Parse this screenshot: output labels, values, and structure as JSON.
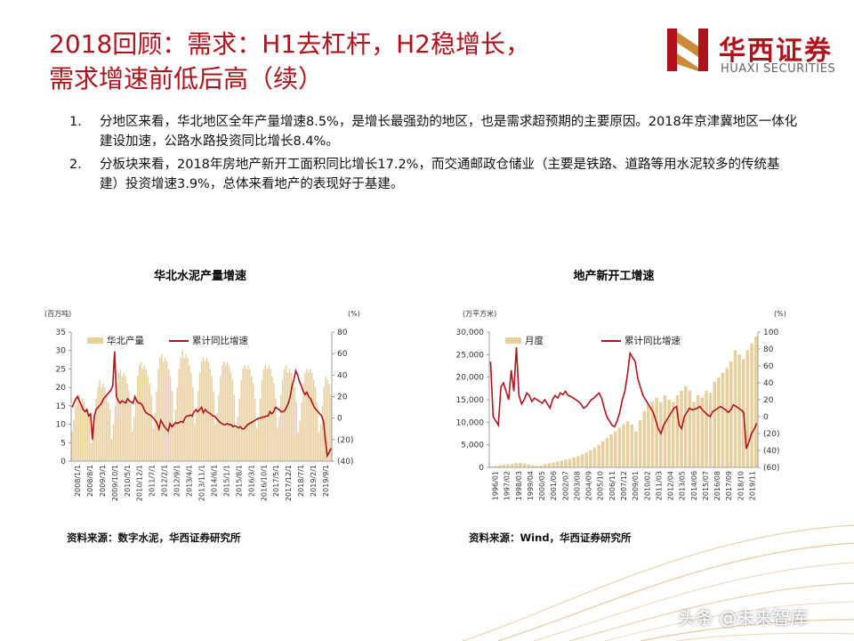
{
  "header": {
    "title_line1": "2018回顾：需求：H1去杠杆，H2稳增长，",
    "title_line2": "需求增速前低后高（续）"
  },
  "logo": {
    "cn": "华西证券",
    "en": "HUAXI SECURITIES"
  },
  "points": [
    {
      "num": "1.",
      "text": "分地区来看，华北地区全年产量增速8.5%，是增长最强劲的地区，也是需求超预期的主要原因。2018年京津冀地区一体化建设加速，公路水路投资同比增长8.4%。"
    },
    {
      "num": "2.",
      "text": "分板块来看，2018年房地产新开工面积同比增长17.2%，而交通邮政仓储业（主要是铁路、道路等用水泥较多的传统基建）投资增速3.9%，总体来看地产的表现好于基建。"
    }
  ],
  "chart1": {
    "title": "华北水泥产量增速",
    "source": "资料来源：数字水泥，华西证券研究所"
  },
  "chart2": {
    "title": "地产新开工增速",
    "source": "资料来源：Wind，华西证券研究所"
  },
  "watermark": "头条 @未来智库",
  "colors": {
    "accent": "#b0121b",
    "bar": "#e8cf9e",
    "line": "#b3121c"
  },
  "chart_data": [
    {
      "type": "bar",
      "title": "华北水泥产量增速",
      "left_unit": "(百万吨)",
      "right_unit": "(%)",
      "left_ylim": [
        0,
        35
      ],
      "left_ticks": [
        "0",
        "5",
        "10",
        "15",
        "20",
        "25",
        "30",
        "35"
      ],
      "right_ylim": [
        -40,
        80
      ],
      "right_ticks": [
        "(40)",
        "(20)",
        "0",
        "20",
        "40",
        "60",
        "80"
      ],
      "x_ticks": [
        "2008/1/1",
        "2008/8/1",
        "2009/3/1",
        "2009/10/1",
        "2010/5/1",
        "2010/12/1",
        "2011/7/1",
        "2012/2/1",
        "2012/9/1",
        "2013/4/1",
        "2013/11/1",
        "2014/6/1",
        "2015/1/1",
        "2015/8/1",
        "2016/3/1",
        "2016/10/1",
        "2017/5/1",
        "2017/12/1",
        "2018/7/1",
        "2019/2/1",
        "2019/9/1"
      ],
      "series": [
        {
          "name": "华北产量",
          "kind": "bar",
          "axis": "left",
          "values": [
            8,
            11,
            15,
            18,
            18,
            16,
            17,
            16,
            14,
            14,
            12,
            5,
            9,
            13,
            17,
            20,
            22,
            20,
            21,
            20,
            18,
            16,
            14,
            6,
            10,
            15,
            21,
            24,
            25,
            23,
            24,
            23,
            21,
            19,
            16,
            8,
            12,
            17,
            23,
            26,
            27,
            25,
            26,
            25,
            23,
            21,
            18,
            9,
            13,
            19,
            25,
            28,
            29,
            27,
            28,
            27,
            25,
            23,
            19,
            10,
            14,
            20,
            25,
            28,
            30,
            28,
            29,
            28,
            26,
            24,
            20,
            10,
            14,
            19,
            24,
            27,
            28,
            27,
            28,
            27,
            25,
            23,
            19,
            10,
            13,
            18,
            23,
            26,
            27,
            26,
            27,
            26,
            24,
            22,
            18,
            9,
            12,
            17,
            22,
            25,
            26,
            25,
            26,
            25,
            23,
            21,
            17,
            9,
            12,
            17,
            22,
            25,
            26,
            25,
            26,
            25,
            23,
            21,
            17,
            9,
            12,
            18,
            22,
            25,
            26,
            24,
            25,
            24,
            22,
            20,
            16,
            8,
            11,
            16,
            21,
            24,
            25,
            24,
            25,
            24,
            22,
            20,
            16,
            8,
            10,
            15,
            20,
            23,
            22,
            21,
            18
          ]
        },
        {
          "name": "累计同比增速",
          "kind": "line",
          "axis": "right",
          "values": [
            10,
            14,
            18,
            20,
            16,
            12,
            8,
            6,
            8,
            2,
            4,
            -20,
            2,
            8,
            10,
            12,
            14,
            18,
            20,
            22,
            24,
            26,
            30,
            62,
            20,
            16,
            14,
            16,
            15,
            14,
            18,
            16,
            15,
            14,
            20,
            16,
            14,
            14,
            12,
            8,
            5,
            4,
            3,
            2,
            0,
            -2,
            -5,
            -10,
            -2,
            -5,
            -8,
            -10,
            -12,
            -5,
            -8,
            -6,
            -4,
            -5,
            -4,
            -3,
            -4,
            0,
            2,
            2,
            3,
            2,
            6,
            8,
            6,
            8,
            10,
            5,
            8,
            6,
            5,
            4,
            2,
            2,
            0,
            -2,
            -4,
            -5,
            -6,
            -6,
            -5,
            -6,
            -6,
            -8,
            -7,
            -8,
            -9,
            -8,
            -10,
            -10,
            -8,
            -6,
            -5,
            -4,
            -3,
            -2,
            -1,
            0,
            0,
            1,
            1,
            2,
            2,
            6,
            4,
            6,
            10,
            9,
            8,
            6,
            6,
            7,
            10,
            14,
            20,
            30,
            36,
            44,
            40,
            34,
            30,
            25,
            22,
            24,
            20,
            18,
            14,
            10,
            8,
            6,
            4,
            2,
            -3,
            -20,
            -35,
            -32,
            -28
          ]
        }
      ]
    },
    {
      "type": "bar",
      "title": "地产新开工增速",
      "left_unit": "(万平方米)",
      "right_unit": "(%)",
      "left_ylim": [
        0,
        30000
      ],
      "left_ticks": [
        "0",
        "5,000",
        "10,000",
        "15,000",
        "20,000",
        "25,000",
        "30,000"
      ],
      "right_ylim": [
        -60,
        100
      ],
      "right_ticks": [
        "(60)",
        "(40)",
        "(20)",
        "0",
        "20",
        "40",
        "60",
        "80",
        "100"
      ],
      "x_ticks": [
        "1996/01",
        "1997/02",
        "1998/03",
        "1999/04",
        "2000/05",
        "2001/06",
        "2002/07",
        "2003/08",
        "2004/09",
        "2005/10",
        "2006/11",
        "2007/12",
        "2009/01",
        "2010/02",
        "2011/03",
        "2012/04",
        "2013/05",
        "2014/06",
        "2015/07",
        "2016/08",
        "2017/09",
        "2018/10",
        "2019/11"
      ],
      "series": [
        {
          "name": "月度",
          "kind": "bar",
          "axis": "left",
          "values": [
            200,
            300,
            500,
            600,
            700,
            800,
            900,
            1000,
            900,
            700,
            500,
            300,
            400,
            700,
            900,
            1100,
            1300,
            1500,
            1700,
            1900,
            2200,
            2500,
            2900,
            3300,
            3800,
            4400,
            5000,
            5800,
            6500,
            7300,
            8000,
            8800,
            9600,
            10200,
            9500,
            8000,
            10500,
            12500,
            14000,
            14500,
            15500,
            14500,
            16000,
            15000,
            14500,
            16000,
            17000,
            18000,
            17000,
            14500,
            16000,
            15500,
            17000,
            16500,
            19000,
            20000,
            21000,
            22000,
            23500,
            26000,
            25000,
            24000,
            26000,
            27500,
            29000
          ]
        },
        {
          "name": "累计同比增速",
          "kind": "line",
          "axis": "right",
          "values": [
            65,
            0,
            -5,
            -10,
            35,
            40,
            30,
            20,
            55,
            30,
            82,
            25,
            15,
            20,
            28,
            25,
            18,
            22,
            20,
            18,
            16,
            20,
            15,
            10,
            20,
            25,
            22,
            28,
            26,
            30,
            25,
            24,
            22,
            20,
            18,
            15,
            10,
            12,
            16,
            20,
            22,
            25,
            28,
            22,
            10,
            0,
            -5,
            -10,
            -12,
            -5,
            5,
            20,
            30,
            50,
            75,
            70,
            65,
            45,
            35,
            25,
            20,
            15,
            10,
            5,
            -5,
            -15,
            -20,
            -10,
            -5,
            0,
            5,
            10,
            12,
            -10,
            -14,
            0,
            5,
            10,
            8,
            9,
            10,
            12,
            8,
            5,
            2,
            0,
            6,
            8,
            10,
            12,
            10,
            8,
            5,
            8,
            14,
            12,
            10,
            8,
            5,
            -38,
            -30,
            -20,
            -15,
            -8
          ]
        }
      ]
    }
  ]
}
